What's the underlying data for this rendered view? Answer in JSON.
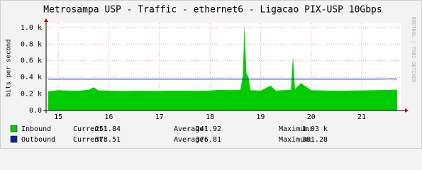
{
  "chart_data": {
    "type": "area",
    "title": "Metrosampa USP - Traffic - ethernet6 - Ligacao PIX-USP 10Gbps",
    "y_label": "bits per second",
    "watermark": "RRDTOOL / TOBI OETIKER",
    "x": [
      14.8,
      15.0,
      15.2,
      15.4,
      15.6,
      15.7,
      15.8,
      16.0,
      16.3,
      16.6,
      17.0,
      17.3,
      17.6,
      18.0,
      18.2,
      18.4,
      18.6,
      18.65,
      18.68,
      18.72,
      18.76,
      18.8,
      19.0,
      19.2,
      19.3,
      19.6,
      19.64,
      19.68,
      19.8,
      20.0,
      20.3,
      20.6,
      21.0,
      21.3,
      21.6,
      21.7
    ],
    "xlim": [
      14.76,
      21.77
    ],
    "xticks": [
      15,
      16,
      17,
      18,
      19,
      20,
      21
    ],
    "ylim": [
      0,
      1050
    ],
    "yticks": [
      {
        "value": 0,
        "label": "0.0"
      },
      {
        "value": 200,
        "label": "0.2 k"
      },
      {
        "value": 400,
        "label": "0.4 k"
      },
      {
        "value": 600,
        "label": "0.6 k"
      },
      {
        "value": 800,
        "label": "0.8 k"
      },
      {
        "value": 1000,
        "label": "1.0 k"
      }
    ],
    "grid": true,
    "stats_labels": [
      "Current:",
      "Average:",
      "Maximum:"
    ],
    "series": [
      {
        "name": "Inbound",
        "color": "#00cc00",
        "style": "area",
        "values": [
          230,
          245,
          240,
          238,
          250,
          280,
          242,
          240,
          235,
          238,
          236,
          240,
          237,
          240,
          250,
          245,
          250,
          420,
          1030,
          450,
          400,
          245,
          240,
          300,
          240,
          250,
          650,
          260,
          330,
          245,
          240,
          238,
          242,
          245,
          250,
          252
        ],
        "stats": [
          251.84,
          241.92,
          {
            "value": 1030,
            "label": "1.03 k"
          }
        ]
      },
      {
        "name": "Outbound",
        "color": "#002a97",
        "style": "line",
        "values": [
          378,
          378,
          378,
          378,
          378,
          378,
          378,
          378,
          378,
          378,
          378,
          378,
          378,
          378,
          380,
          378,
          378,
          378,
          378,
          378,
          378,
          378,
          378,
          378,
          378,
          378,
          378,
          378,
          378,
          378,
          378,
          378,
          378,
          378,
          381,
          378.5
        ],
        "stats": [
          378.51,
          376.81,
          381.28
        ]
      }
    ]
  }
}
